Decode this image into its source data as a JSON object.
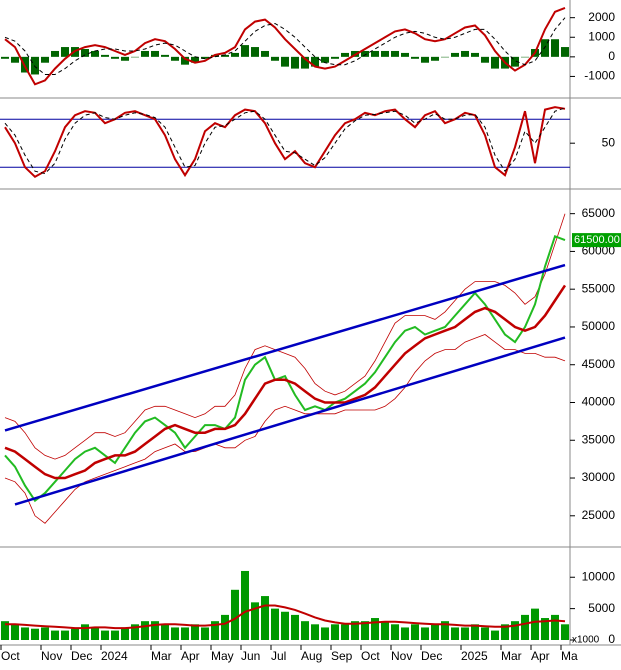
{
  "chart_data": [
    {
      "type": "combo",
      "ylim": [
        -2050,
        2800
      ],
      "yticks": [
        2000,
        1000,
        0,
        -1000
      ],
      "series": [
        {
          "mark": "bar",
          "color": "#006400",
          "values": [
            -100,
            -300,
            -800,
            -900,
            -300,
            300,
            500,
            500,
            400,
            300,
            100,
            -100,
            -200,
            0,
            300,
            300,
            100,
            -200,
            -400,
            -300,
            -100,
            100,
            100,
            200,
            600,
            500,
            300,
            -200,
            -500,
            -600,
            -600,
            -500,
            -300,
            -100,
            200,
            300,
            300,
            300,
            300,
            300,
            200,
            -100,
            -300,
            -200,
            0,
            200,
            300,
            200,
            -300,
            -600,
            -600,
            -500,
            0,
            400,
            900,
            900,
            500
          ]
        },
        {
          "mark": "line",
          "color": "#c00000",
          "width": 2,
          "values": [
            900,
            500,
            -500,
            -1400,
            -1200,
            -600,
            -100,
            300,
            500,
            600,
            500,
            300,
            100,
            300,
            700,
            900,
            800,
            400,
            -100,
            -300,
            -200,
            100,
            200,
            500,
            1400,
            1800,
            1900,
            1500,
            900,
            400,
            -100,
            -500,
            -600,
            -500,
            -200,
            100,
            400,
            700,
            1000,
            1300,
            1400,
            1200,
            900,
            800,
            900,
            1200,
            1500,
            1600,
            1100,
            300,
            -300,
            -700,
            -400,
            200,
            1400,
            2300,
            2500
          ]
        },
        {
          "mark": "line",
          "color": "#000000",
          "width": 1,
          "dash": true,
          "values": [
            1000,
            800,
            300,
            -500,
            -900,
            -900,
            -600,
            -200,
            100,
            300,
            400,
            400,
            300,
            300,
            400,
            600,
            700,
            600,
            300,
            0,
            -100,
            0,
            100,
            300,
            800,
            1300,
            1600,
            1700,
            1400,
            1000,
            500,
            0,
            -300,
            -400,
            -400,
            -200,
            100,
            400,
            700,
            1000,
            1200,
            1300,
            1200,
            1000,
            900,
            1000,
            1200,
            1400,
            1400,
            900,
            300,
            -200,
            -400,
            -200,
            500,
            1400,
            2000
          ]
        }
      ]
    },
    {
      "type": "line",
      "ylim": [
        -6,
        104
      ],
      "yticks": [
        50
      ],
      "levels": [
        80,
        20
      ],
      "level_color": "#0000a0",
      "series": [
        {
          "mark": "line",
          "color": "#c00000",
          "width": 2,
          "values": [
            70,
            50,
            20,
            8,
            15,
            40,
            70,
            85,
            90,
            88,
            75,
            80,
            88,
            90,
            85,
            80,
            60,
            30,
            10,
            30,
            65,
            75,
            70,
            85,
            92,
            90,
            75,
            50,
            30,
            40,
            25,
            20,
            40,
            60,
            75,
            80,
            88,
            85,
            90,
            92,
            80,
            70,
            85,
            90,
            75,
            80,
            88,
            85,
            60,
            20,
            10,
            45,
            90,
            25,
            92,
            95,
            93
          ]
        },
        {
          "mark": "line",
          "color": "#000000",
          "width": 1,
          "dash": true,
          "values": [
            75,
            60,
            35,
            15,
            12,
            25,
            55,
            75,
            85,
            88,
            82,
            80,
            85,
            88,
            86,
            82,
            70,
            45,
            20,
            22,
            50,
            70,
            72,
            80,
            88,
            90,
            80,
            60,
            40,
            38,
            30,
            22,
            32,
            50,
            68,
            78,
            85,
            86,
            88,
            90,
            85,
            75,
            80,
            87,
            80,
            80,
            85,
            86,
            70,
            35,
            15,
            30,
            65,
            50,
            70,
            90,
            94
          ]
        }
      ]
    },
    {
      "type": "combo",
      "ylim": [
        21000,
        68000
      ],
      "yticks": [
        65000,
        60000,
        55000,
        50000,
        45000,
        40000,
        35000,
        30000,
        25000
      ],
      "last_price": {
        "value": 61500,
        "label": "61500.00"
      },
      "channel": [
        {
          "x": [
            0,
            56
          ],
          "values": [
            36300,
            58200
          ],
          "color": "#0000c0"
        },
        {
          "x": [
            1,
            56
          ],
          "values": [
            26500,
            48600
          ],
          "color": "#0000c0"
        }
      ],
      "series": [
        {
          "mark": "line",
          "color": "#c00000",
          "width": 0.8,
          "values": [
            38000,
            37500,
            36000,
            34000,
            33000,
            32500,
            33000,
            34000,
            35000,
            36000,
            36000,
            35500,
            36000,
            37500,
            39000,
            39500,
            39500,
            39000,
            38500,
            38000,
            38500,
            39500,
            39500,
            41000,
            44500,
            47000,
            47500,
            47000,
            46500,
            46000,
            44500,
            42500,
            41500,
            41000,
            41500,
            42500,
            43500,
            45500,
            48000,
            50500,
            51500,
            51500,
            51500,
            51000,
            52000,
            53500,
            55000,
            56000,
            56000,
            56000,
            55500,
            54500,
            53000,
            54000,
            57000,
            61000,
            65000
          ]
        },
        {
          "mark": "line",
          "color": "#c00000",
          "width": 0.8,
          "values": [
            30000,
            29500,
            28000,
            25000,
            24000,
            25500,
            27000,
            28500,
            29500,
            30000,
            30500,
            31000,
            31500,
            32000,
            32500,
            33500,
            34000,
            34500,
            33500,
            33500,
            34000,
            34500,
            34000,
            34000,
            35000,
            35500,
            37500,
            39000,
            39500,
            39000,
            38500,
            38500,
            38500,
            38500,
            39000,
            39000,
            39000,
            39000,
            39500,
            40500,
            42000,
            44000,
            45500,
            46500,
            47000,
            47000,
            48000,
            48500,
            49000,
            48000,
            47000,
            47000,
            46500,
            46500,
            46000,
            46000,
            45500
          ]
        },
        {
          "mark": "line",
          "color": "#22bb22",
          "width": 2,
          "values": [
            33000,
            31500,
            29000,
            27000,
            28000,
            29500,
            31000,
            32500,
            33500,
            34000,
            33000,
            32000,
            34000,
            36000,
            37500,
            38000,
            37000,
            36000,
            34000,
            35500,
            37000,
            37000,
            36500,
            38000,
            43000,
            45000,
            46000,
            43000,
            43500,
            41000,
            39000,
            39500,
            39000,
            40000,
            40500,
            41500,
            42500,
            44000,
            46000,
            48000,
            49500,
            50000,
            49000,
            49500,
            50000,
            51500,
            53000,
            54500,
            53000,
            51000,
            49000,
            48000,
            50000,
            53000,
            58000,
            62000,
            61500
          ]
        },
        {
          "mark": "line",
          "color": "#c00000",
          "width": 2.5,
          "values": [
            34000,
            33500,
            32500,
            31500,
            30500,
            30000,
            30000,
            30500,
            31000,
            32000,
            32500,
            33000,
            33000,
            33500,
            34500,
            35500,
            36500,
            37000,
            36500,
            36000,
            36000,
            36500,
            36500,
            37000,
            38500,
            40500,
            42500,
            43000,
            43000,
            42500,
            41500,
            40500,
            40000,
            40000,
            40000,
            40500,
            41000,
            42000,
            43500,
            45000,
            46500,
            47500,
            48500,
            49000,
            49500,
            50000,
            51000,
            52000,
            52500,
            52000,
            51000,
            50000,
            49500,
            50000,
            51500,
            53500,
            55500
          ]
        }
      ]
    },
    {
      "type": "combo",
      "ylim": [
        0,
        14500
      ],
      "yticks": [
        10000,
        5000,
        0
      ],
      "unit_label": "x1000",
      "categories": [
        "Oct",
        null,
        null,
        null,
        "Nov",
        null,
        null,
        "Dec",
        null,
        null,
        "2024",
        null,
        null,
        null,
        null,
        "Mar",
        null,
        null,
        "Apr",
        null,
        null,
        "May",
        null,
        null,
        "Jun",
        null,
        null,
        "Jul",
        null,
        null,
        "Aug",
        null,
        null,
        "Sep",
        null,
        null,
        "Oct",
        null,
        null,
        "Nov",
        null,
        null,
        "Dec",
        null,
        null,
        null,
        "2025",
        null,
        null,
        null,
        "Mar",
        null,
        null,
        "Apr",
        null,
        null,
        "Ma"
      ],
      "series": [
        {
          "mark": "bar",
          "color": "#009900",
          "values": [
            3000,
            2500,
            2000,
            1800,
            2000,
            1500,
            1500,
            1800,
            2500,
            2000,
            1500,
            1500,
            2000,
            2500,
            3000,
            3000,
            2500,
            2000,
            2000,
            2500,
            2000,
            3000,
            4000,
            8000,
            11000,
            6000,
            7000,
            5000,
            4500,
            4000,
            3000,
            2500,
            2000,
            2500,
            2500,
            3000,
            3000,
            3500,
            3000,
            2500,
            2000,
            2500,
            2000,
            2500,
            3000,
            2000,
            2000,
            2500,
            2000,
            1500,
            2500,
            3000,
            4000,
            5000,
            3500,
            4000,
            2500
          ]
        },
        {
          "mark": "line",
          "color": "#c00000",
          "width": 2,
          "values": [
            2500,
            2500,
            2400,
            2300,
            2200,
            2100,
            2000,
            1900,
            1900,
            2000,
            2000,
            1900,
            1900,
            2000,
            2200,
            2400,
            2500,
            2500,
            2400,
            2300,
            2300,
            2400,
            2600,
            3400,
            4500,
            5000,
            5500,
            5500,
            5200,
            4800,
            4200,
            3600,
            3100,
            2800,
            2600,
            2600,
            2700,
            2800,
            2900,
            2900,
            2800,
            2700,
            2600,
            2500,
            2500,
            2400,
            2300,
            2300,
            2200,
            2100,
            2100,
            2300,
            2600,
            2900,
            3000,
            3100,
            3000
          ]
        }
      ]
    }
  ]
}
